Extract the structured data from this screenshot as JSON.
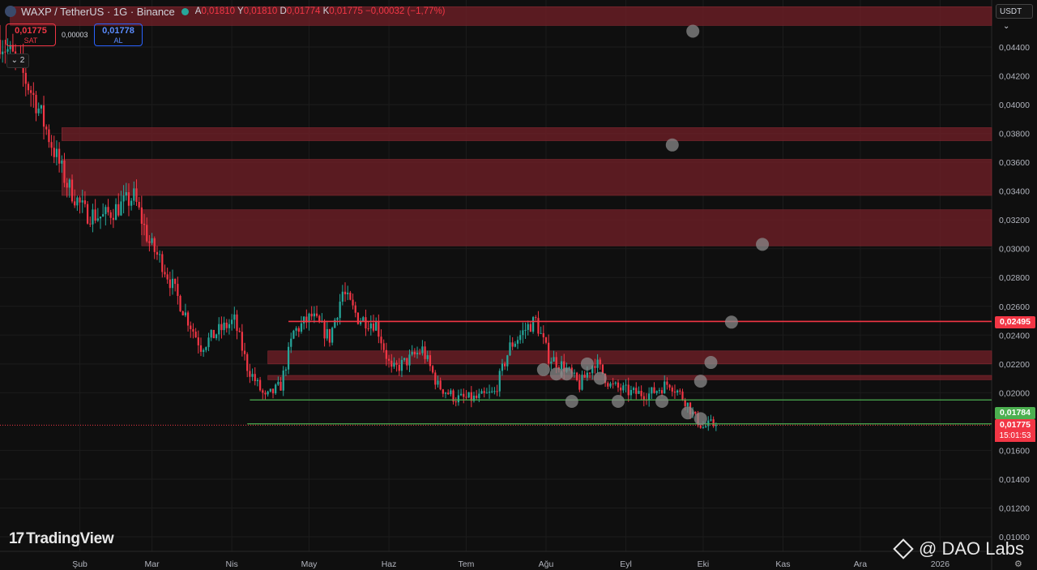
{
  "header": {
    "title": "WAXP / TetherUS · 1G · Binance",
    "ohlc": {
      "o_label": "A",
      "o": "0,01810",
      "h_label": "Y",
      "h": "0,01810",
      "l_label": "D",
      "l": "0,01774",
      "c_label": "K",
      "c": "0,01775",
      "change": "−0,00032 (−1,77%)"
    }
  },
  "trade": {
    "sell_price": "0,01775",
    "sell_label": "SAT",
    "spread": "0,00003",
    "buy_price": "0,01778",
    "buy_label": "AL"
  },
  "controls": {
    "collapse_label": "⌄ 2",
    "currency": "USDT",
    "currency_caret": "⌄"
  },
  "price_badges": {
    "resistance": "0,02495",
    "green_level": "0,01784",
    "last": "0,01775",
    "countdown": "15:01:53"
  },
  "branding": {
    "tradingview": "TradingView",
    "tradingview_mark": "17",
    "dao": "@ DAO Labs"
  },
  "colors": {
    "up": "#26a69a",
    "down": "#f23645",
    "zone": "#6b1f26",
    "line_red": "#f23645",
    "line_green": "#4caf50"
  },
  "chart_data": {
    "type": "candlestick",
    "symbol": "WAXP / TetherUS",
    "timeframe": "1G",
    "exchange": "Binance",
    "ylim": [
      0.01,
      0.046
    ],
    "y_ticks": [
      "0,04400",
      "0,04200",
      "0,04000",
      "0,03800",
      "0,03600",
      "0,03400",
      "0,03200",
      "0,03000",
      "0,02800",
      "0,02600",
      "0,02400",
      "0,02200",
      "0,02000",
      "0,01600",
      "0,01400",
      "0,01200",
      "0,01000"
    ],
    "y_tick_values": [
      0.044,
      0.042,
      0.04,
      0.038,
      0.036,
      0.034,
      0.032,
      0.03,
      0.028,
      0.026,
      0.024,
      0.022,
      0.02,
      0.016,
      0.014,
      0.012,
      0.01
    ],
    "x_ticks": [
      "Şub",
      "Mar",
      "Nis",
      "May",
      "Haz",
      "Tem",
      "Ağu",
      "Eyl",
      "Eki",
      "Kas",
      "Ara",
      "2026"
    ],
    "x_tick_dates": [
      "2025-02-01",
      "2025-03-01",
      "2025-04-01",
      "2025-05-01",
      "2025-06-01",
      "2025-07-01",
      "2025-08-01",
      "2025-09-01",
      "2025-10-01",
      "2025-11-01",
      "2025-12-01",
      "2026-01-01"
    ],
    "zones": [
      {
        "from": 0.0455,
        "to": 0.0468,
        "start": "2025-01-05"
      },
      {
        "from": 0.0375,
        "to": 0.0384,
        "start": "2025-01-25"
      },
      {
        "from": 0.0337,
        "to": 0.0362,
        "start": "2025-01-25"
      },
      {
        "from": 0.0302,
        "to": 0.0327,
        "start": "2025-02-25"
      },
      {
        "from": 0.022,
        "to": 0.0229,
        "start": "2025-04-15"
      },
      {
        "from": 0.0209,
        "to": 0.0212,
        "start": "2025-04-15"
      }
    ],
    "levels": [
      {
        "value": 0.02495,
        "start": "2025-04-23",
        "color": "red"
      },
      {
        "value": 0.0195,
        "start": "2025-04-08",
        "color": "green"
      },
      {
        "value": 0.01784,
        "start": "2025-04-07",
        "color": "green"
      }
    ],
    "circle_markers": [
      {
        "date": "2025-09-27",
        "value": 0.0451
      },
      {
        "date": "2025-09-19",
        "value": 0.0372
      },
      {
        "date": "2025-10-24",
        "value": 0.0303
      },
      {
        "date": "2025-10-12",
        "value": 0.0249
      },
      {
        "date": "2025-10-04",
        "value": 0.0221
      },
      {
        "date": "2025-09-30",
        "value": 0.0208
      },
      {
        "date": "2025-09-25",
        "value": 0.0186
      },
      {
        "date": "2025-09-15",
        "value": 0.0194
      },
      {
        "date": "2025-08-29",
        "value": 0.0194
      },
      {
        "date": "2025-08-11",
        "value": 0.0194
      },
      {
        "date": "2025-08-17",
        "value": 0.022
      },
      {
        "date": "2025-08-09",
        "value": 0.0213
      },
      {
        "date": "2025-07-31",
        "value": 0.0216
      },
      {
        "date": "2025-08-05",
        "value": 0.0213
      },
      {
        "date": "2025-08-22",
        "value": 0.021
      },
      {
        "date": "2025-09-30",
        "value": 0.0182
      }
    ],
    "anchors": [
      [
        "2025-01-01",
        0.0445
      ],
      [
        "2025-01-08",
        0.0428
      ],
      [
        "2025-01-15",
        0.0402
      ],
      [
        "2025-01-22",
        0.0368
      ],
      [
        "2025-01-27",
        0.0345
      ],
      [
        "2025-02-03",
        0.0325
      ],
      [
        "2025-02-10",
        0.0322
      ],
      [
        "2025-02-17",
        0.033
      ],
      [
        "2025-02-22",
        0.0336
      ],
      [
        "2025-02-28",
        0.0304
      ],
      [
        "2025-03-05",
        0.029
      ],
      [
        "2025-03-12",
        0.0262
      ],
      [
        "2025-03-20",
        0.0232
      ],
      [
        "2025-03-27",
        0.0243
      ],
      [
        "2025-04-02",
        0.025
      ],
      [
        "2025-04-07",
        0.0218
      ],
      [
        "2025-04-14",
        0.0196
      ],
      [
        "2025-04-20",
        0.0205
      ],
      [
        "2025-04-25",
        0.0242
      ],
      [
        "2025-05-02",
        0.0253
      ],
      [
        "2025-05-09",
        0.0238
      ],
      [
        "2025-05-14",
        0.027
      ],
      [
        "2025-05-20",
        0.0252
      ],
      [
        "2025-05-27",
        0.0248
      ],
      [
        "2025-06-02",
        0.0215
      ],
      [
        "2025-06-08",
        0.0222
      ],
      [
        "2025-06-14",
        0.023
      ],
      [
        "2025-06-20",
        0.0205
      ],
      [
        "2025-06-27",
        0.0196
      ],
      [
        "2025-07-05",
        0.0196
      ],
      [
        "2025-07-12",
        0.02
      ],
      [
        "2025-07-18",
        0.0232
      ],
      [
        "2025-07-25",
        0.0246
      ],
      [
        "2025-07-28",
        0.025
      ],
      [
        "2025-08-02",
        0.0225
      ],
      [
        "2025-08-08",
        0.0218
      ],
      [
        "2025-08-14",
        0.0205
      ],
      [
        "2025-08-20",
        0.0222
      ],
      [
        "2025-08-26",
        0.0205
      ],
      [
        "2025-09-03",
        0.02
      ],
      [
        "2025-09-10",
        0.0199
      ],
      [
        "2025-09-18",
        0.0207
      ],
      [
        "2025-09-24",
        0.0195
      ],
      [
        "2025-09-28",
        0.0182
      ],
      [
        "2025-10-01",
        0.0176
      ],
      [
        "2025-10-04",
        0.0178
      ],
      [
        "2025-10-06",
        0.01775
      ]
    ]
  }
}
